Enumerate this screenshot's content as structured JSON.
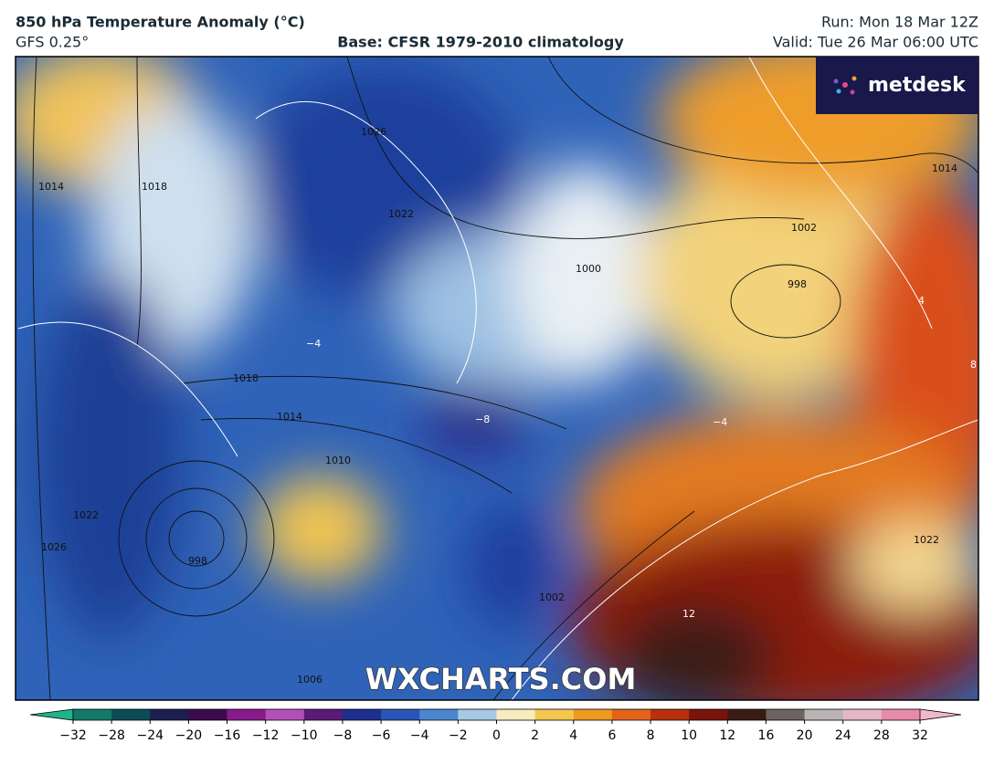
{
  "header": {
    "title": "850 hPa Temperature Anomaly (°C)",
    "model": "GFS 0.25°",
    "base": "Base: CFSR 1979-2010 climatology",
    "run": "Run: Mon 18 Mar 12Z",
    "valid": "Valid: Tue 26 Mar 06:00 UTC"
  },
  "logo": "metdesk",
  "watermark": "WXCHARTS.COM",
  "contour_labels": [
    "1014",
    "1018",
    "1026",
    "1022",
    "1002",
    "998",
    "1000",
    "1018",
    "1014",
    "1010",
    "998",
    "1022",
    "1026",
    "1002",
    "1006",
    "1014",
    "1022",
    "−4",
    "−4",
    "−8",
    "4",
    "12",
    "8"
  ],
  "colorbar": {
    "ticks": [
      {
        "value": -32,
        "label": "−32"
      },
      {
        "value": -28,
        "label": "−28"
      },
      {
        "value": -24,
        "label": "−24"
      },
      {
        "value": -20,
        "label": "−20"
      },
      {
        "value": -16,
        "label": "−16"
      },
      {
        "value": -12,
        "label": "−12"
      },
      {
        "value": -10,
        "label": "−10"
      },
      {
        "value": -8,
        "label": "−8"
      },
      {
        "value": -6,
        "label": "−6"
      },
      {
        "value": -4,
        "label": "−4"
      },
      {
        "value": -2,
        "label": "−2"
      },
      0,
      2,
      4,
      6,
      8,
      10,
      12,
      16,
      20,
      24,
      28,
      32
    ],
    "colors": [
      "#137a6a",
      "#0c4a58",
      "#1a1f4f",
      "#3b0b4b",
      "#8a1a8c",
      "#b44fb8",
      "#5b1a78",
      "#1c2f8f",
      "#2a55b8",
      "#4b86cf",
      "#a7c9e6",
      "#f6ecc0",
      "#f3c64f",
      "#ee9a22",
      "#e4631b",
      "#b8300e",
      "#7a140a",
      "#3a1a14",
      "#6c6462",
      "#b9b3b3",
      "#e4b7c5",
      "#e88aa9"
    ],
    "low_color": "#1fb28c",
    "high_color": "#f0b8cc"
  }
}
